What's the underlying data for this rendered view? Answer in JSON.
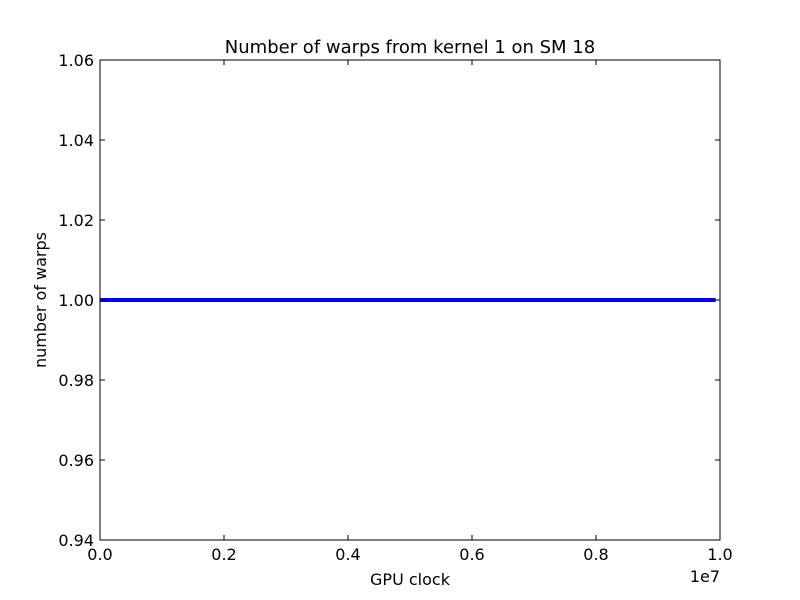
{
  "chart_data": {
    "type": "line",
    "title": "Number of warps from kernel 1 on SM 18",
    "xlabel": "GPU clock",
    "ylabel": "number of warps",
    "x_offset_label": "1e7",
    "xlim": [
      0.0,
      1.0
    ],
    "ylim": [
      0.94,
      1.06
    ],
    "x_ticks": [
      0.0,
      0.2,
      0.4,
      0.6,
      0.8,
      1.0
    ],
    "x_tick_labels": [
      "0.0",
      "0.2",
      "0.4",
      "0.6",
      "0.8",
      "1.0"
    ],
    "y_ticks": [
      0.94,
      0.96,
      0.98,
      1.0,
      1.02,
      1.04,
      1.06
    ],
    "y_tick_labels": [
      "0.94",
      "0.96",
      "0.98",
      "1.00",
      "1.02",
      "1.04",
      "1.06"
    ],
    "grid": false,
    "series": [
      {
        "color": "#0000ff",
        "x": [
          0.0,
          0.993
        ],
        "y": [
          1.0,
          1.0
        ]
      }
    ]
  }
}
